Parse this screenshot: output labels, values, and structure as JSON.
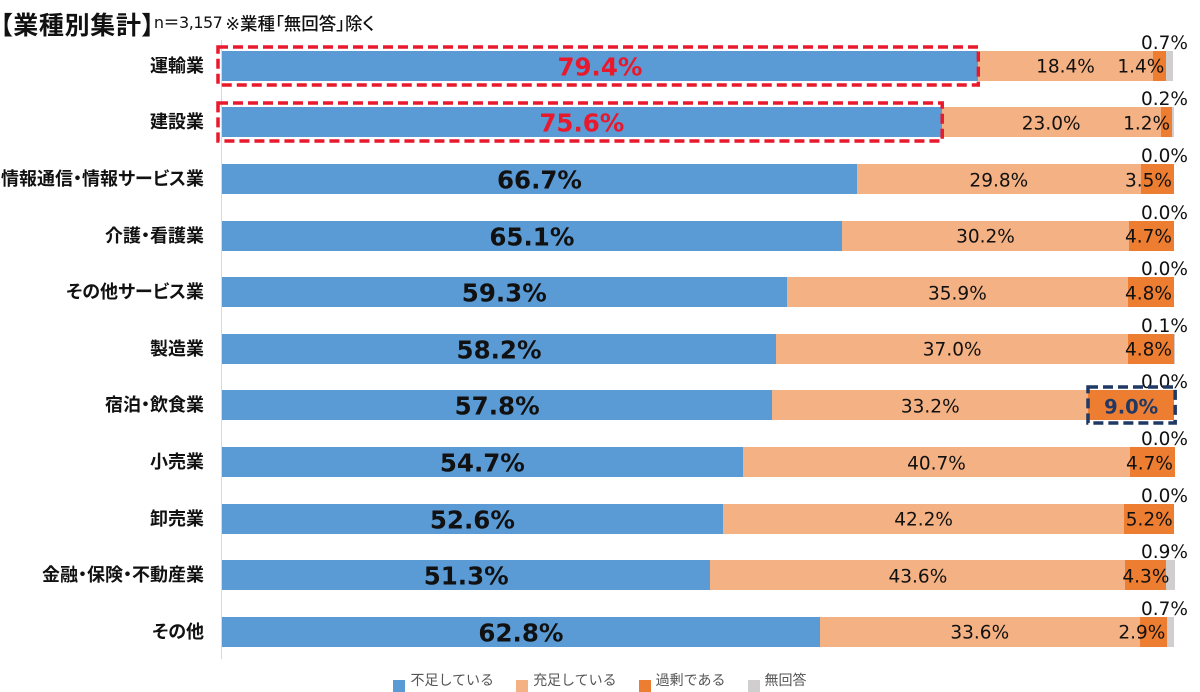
{
  "header": {
    "title": "【業種別集計】",
    "sample_size": "n＝3,157",
    "note": "※業種「無回答」除く"
  },
  "colors": {
    "series1_blue": "#5b9bd5",
    "series2_light_orange": "#f4b183",
    "series3_orange": "#ed7d31",
    "series4_gray": "#d0cece",
    "axis_line": "#d9d9d9",
    "text": "#111111",
    "highlight_red": "#e8192c",
    "highlight_navy": "#1f3864"
  },
  "chart_data": {
    "type": "bar",
    "stacked": true,
    "orientation": "horizontal",
    "value_unit": "%",
    "axis_range": [
      0,
      100
    ],
    "grid": false,
    "categories": [
      "運輸業",
      "建設業",
      "情報通信・情報サービス業",
      "介護・看護業",
      "その他サービス業",
      "製造業",
      "宿泊・飲食業",
      "小売業",
      "卸売業",
      "金融・保険・不動産業",
      "その他"
    ],
    "series": [
      {
        "name": "series1",
        "color": "#5b9bd5",
        "values": [
          79.4,
          75.6,
          66.7,
          65.1,
          59.3,
          58.2,
          57.8,
          54.7,
          52.6,
          51.3,
          62.8
        ]
      },
      {
        "name": "series2",
        "color": "#f4b183",
        "values": [
          18.4,
          23.0,
          29.8,
          30.2,
          35.9,
          37.0,
          33.2,
          40.7,
          42.2,
          43.6,
          33.6
        ]
      },
      {
        "name": "series3",
        "color": "#ed7d31",
        "values": [
          1.4,
          1.2,
          3.5,
          4.7,
          4.8,
          4.8,
          9.0,
          4.7,
          5.2,
          4.3,
          2.9
        ]
      },
      {
        "name": "series4",
        "color": "#d0cece",
        "values": [
          0.7,
          0.2,
          0.0,
          0.0,
          0.0,
          0.1,
          0.0,
          0.0,
          0.0,
          0.9,
          0.7
        ]
      }
    ],
    "highlights": {
      "red_dashed_box_rows": [
        0,
        1
      ],
      "red_value_rows": [
        0,
        1
      ],
      "navy_dashed_box": {
        "row": 6,
        "series_index": 2
      }
    }
  },
  "legend": {
    "clipped_at_bottom": true,
    "items": [
      {
        "label": "不足している",
        "color": "#5b9bd5"
      },
      {
        "label": "充足している",
        "color": "#f4b183"
      },
      {
        "label": "過剰である",
        "color": "#ed7d31"
      },
      {
        "label": "無回答",
        "color": "#d0cece"
      }
    ]
  }
}
